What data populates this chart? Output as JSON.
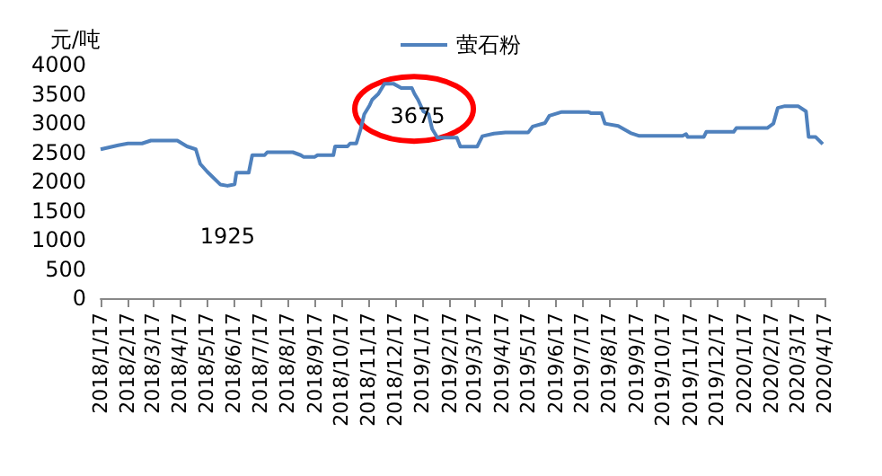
{
  "chart_data": {
    "type": "line",
    "ylabel": "元/吨",
    "legend": "top",
    "x": [
      "2018-01-17",
      "2018-02-06",
      "2018-02-17",
      "2018-03-05",
      "2018-03-15",
      "2018-04-14",
      "2018-04-25",
      "2018-05-05",
      "2018-05-10",
      "2018-05-18",
      "2018-06-02",
      "2018-06-10",
      "2018-06-18",
      "2018-06-20",
      "2018-07-04",
      "2018-07-08",
      "2018-07-22",
      "2018-07-25",
      "2018-08-23",
      "2018-09-01",
      "2018-09-04",
      "2018-09-17",
      "2018-09-20",
      "2018-10-08",
      "2018-10-10",
      "2018-10-24",
      "2018-10-27",
      "2018-11-03",
      "2018-11-08",
      "2018-11-12",
      "2018-11-18",
      "2018-11-21",
      "2018-11-28",
      "2018-12-05",
      "2018-12-15",
      "2018-12-24",
      "2019-01-05",
      "2019-01-08",
      "2019-01-12",
      "2019-01-18",
      "2019-01-24",
      "2019-01-28",
      "2019-02-03",
      "2019-02-25",
      "2019-03-01",
      "2019-03-20",
      "2019-03-26",
      "2019-04-08",
      "2019-04-21",
      "2019-05-17",
      "2019-05-22",
      "2019-06-05",
      "2019-06-10",
      "2019-06-24",
      "2019-07-24",
      "2019-07-27",
      "2019-08-08",
      "2019-08-12",
      "2019-08-27",
      "2019-09-10",
      "2019-09-20",
      "2019-11-08",
      "2019-11-12",
      "2019-11-14",
      "2019-12-02",
      "2019-12-05",
      "2020-01-05",
      "2020-01-08",
      "2020-02-12",
      "2020-02-19",
      "2020-02-24",
      "2020-03-03",
      "2020-03-18",
      "2020-03-27",
      "2020-03-30",
      "2020-04-07",
      "2020-04-15"
    ],
    "series": [
      {
        "name": "萤石粉",
        "color": "#4f81bd",
        "values": [
          2550,
          2620,
          2650,
          2650,
          2700,
          2700,
          2600,
          2550,
          2300,
          2165,
          1945,
          1925,
          1950,
          2150,
          2150,
          2450,
          2450,
          2500,
          2500,
          2450,
          2420,
          2420,
          2450,
          2450,
          2600,
          2600,
          2650,
          2650,
          2900,
          3150,
          3300,
          3400,
          3500,
          3675,
          3675,
          3600,
          3600,
          3500,
          3400,
          3200,
          3150,
          2900,
          2750,
          2750,
          2595,
          2595,
          2775,
          2820,
          2840,
          2840,
          2940,
          3000,
          3125,
          3190,
          3190,
          3170,
          3170,
          2990,
          2950,
          2830,
          2780,
          2780,
          2810,
          2760,
          2760,
          2850,
          2850,
          2915,
          2915,
          2990,
          3260,
          3290,
          3290,
          3200,
          2760,
          2760,
          2640
        ]
      }
    ],
    "ylim": [
      0,
      4000
    ],
    "yticks": [
      0,
      500,
      1000,
      1500,
      2000,
      2500,
      3000,
      3500,
      4000
    ],
    "xlim": [
      "2018-01-17",
      "2020-04-17"
    ],
    "xticks": [
      {
        "value": "2018-01-17",
        "label": "2018/1/17"
      },
      {
        "value": "2018-02-17",
        "label": "2018/2/17"
      },
      {
        "value": "2018-03-17",
        "label": "2018/3/17"
      },
      {
        "value": "2018-04-17",
        "label": "2018/4/17"
      },
      {
        "value": "2018-05-17",
        "label": "2018/5/17"
      },
      {
        "value": "2018-06-17",
        "label": "2018/6/17"
      },
      {
        "value": "2018-07-17",
        "label": "2018/7/17"
      },
      {
        "value": "2018-08-17",
        "label": "2018/8/17"
      },
      {
        "value": "2018-09-17",
        "label": "2018/9/17"
      },
      {
        "value": "2018-10-17",
        "label": "2018/10/17"
      },
      {
        "value": "2018-11-17",
        "label": "2018/11/17"
      },
      {
        "value": "2018-12-17",
        "label": "2018/12/17"
      },
      {
        "value": "2019-01-17",
        "label": "2019/1/17"
      },
      {
        "value": "2019-02-17",
        "label": "2019/2/17"
      },
      {
        "value": "2019-03-17",
        "label": "2019/3/17"
      },
      {
        "value": "2019-04-17",
        "label": "2019/4/17"
      },
      {
        "value": "2019-05-17",
        "label": "2019/5/17"
      },
      {
        "value": "2019-06-17",
        "label": "2019/6/17"
      },
      {
        "value": "2019-07-17",
        "label": "2019/7/17"
      },
      {
        "value": "2019-08-17",
        "label": "2019/8/17"
      },
      {
        "value": "2019-09-17",
        "label": "2019/9/17"
      },
      {
        "value": "2019-10-17",
        "label": "2019/10/17"
      },
      {
        "value": "2019-11-17",
        "label": "2019/11/17"
      },
      {
        "value": "2019-12-17",
        "label": "2019/12/17"
      },
      {
        "value": "2020-01-17",
        "label": "2020/1/17"
      },
      {
        "value": "2020-02-17",
        "label": "2020/2/17"
      },
      {
        "value": "2020-03-17",
        "label": "2020/3/17"
      },
      {
        "value": "2020-04-17",
        "label": "2020/4/17"
      }
    ],
    "annotations": [
      {
        "text": "1925",
        "x": "2018-06-10",
        "y": 1925
      },
      {
        "text": "3675",
        "x": "2018-12-10",
        "y": 3675
      }
    ],
    "grid": false,
    "marker": "none",
    "line_style": "solid"
  }
}
